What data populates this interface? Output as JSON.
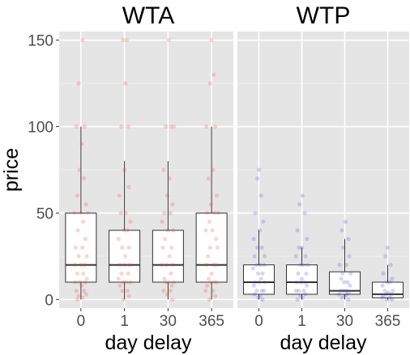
{
  "chart_data": {
    "type": "boxplot",
    "facets": [
      {
        "title": "WTA",
        "color": "#e8453c",
        "categories": [
          "0",
          "1",
          "30",
          "365"
        ],
        "boxes": [
          {
            "category": "0",
            "min": 0,
            "q1": 10,
            "median": 20,
            "q3": 50,
            "max": 100
          },
          {
            "category": "1",
            "min": 0,
            "q1": 10,
            "median": 20,
            "q3": 40,
            "max": 80
          },
          {
            "category": "30",
            "min": 0,
            "q1": 10,
            "median": 20,
            "q3": 40,
            "max": 80
          },
          {
            "category": "365",
            "min": 0,
            "q1": 10,
            "median": 20,
            "q3": 50,
            "max": 100
          }
        ],
        "points": [
          [
            0,
            150,
            0.02
          ],
          [
            0,
            125,
            -0.03
          ],
          [
            0,
            100,
            -0.06
          ],
          [
            0,
            100,
            0.05
          ],
          [
            0,
            90,
            0.01
          ],
          [
            0,
            75,
            -0.02
          ],
          [
            0,
            70,
            0.04
          ],
          [
            0,
            60,
            -0.05
          ],
          [
            0,
            55,
            0.07
          ],
          [
            0,
            50,
            0.0
          ],
          [
            0,
            50,
            -0.09
          ],
          [
            0,
            50,
            0.09
          ],
          [
            0,
            45,
            0.03
          ],
          [
            0,
            40,
            -0.04
          ],
          [
            0,
            35,
            0.06
          ],
          [
            0,
            30,
            -0.07
          ],
          [
            0,
            30,
            0.02
          ],
          [
            0,
            25,
            0.08
          ],
          [
            0,
            25,
            -0.03
          ],
          [
            0,
            20,
            0.0
          ],
          [
            0,
            20,
            -0.08
          ],
          [
            0,
            20,
            0.05
          ],
          [
            0,
            15,
            0.03
          ],
          [
            0,
            15,
            -0.05
          ],
          [
            0,
            12,
            0.08
          ],
          [
            0,
            10,
            -0.02
          ],
          [
            0,
            10,
            0.06
          ],
          [
            0,
            10,
            -0.08
          ],
          [
            0,
            8,
            0.01
          ],
          [
            0,
            5,
            -0.06
          ],
          [
            0,
            5,
            0.04
          ],
          [
            0,
            3,
            0.07
          ],
          [
            0,
            2,
            -0.03
          ],
          [
            0,
            1,
            0.02
          ],
          [
            0,
            0,
            -0.05
          ],
          [
            1,
            150,
            -0.02
          ],
          [
            1,
            150,
            0.03
          ],
          [
            1,
            125,
            0.01
          ],
          [
            1,
            100,
            -0.04
          ],
          [
            1,
            100,
            0.05
          ],
          [
            1,
            75,
            0.0
          ],
          [
            1,
            65,
            0.06
          ],
          [
            1,
            60,
            -0.07
          ],
          [
            1,
            50,
            0.02
          ],
          [
            1,
            50,
            -0.05
          ],
          [
            1,
            45,
            0.08
          ],
          [
            1,
            40,
            -0.01
          ],
          [
            1,
            40,
            0.04
          ],
          [
            1,
            35,
            -0.08
          ],
          [
            1,
            30,
            0.06
          ],
          [
            1,
            30,
            -0.03
          ],
          [
            1,
            25,
            0.01
          ],
          [
            1,
            20,
            -0.06
          ],
          [
            1,
            20,
            0.07
          ],
          [
            1,
            20,
            0.0
          ],
          [
            1,
            15,
            -0.04
          ],
          [
            1,
            15,
            0.05
          ],
          [
            1,
            12,
            -0.08
          ],
          [
            1,
            10,
            0.02
          ],
          [
            1,
            10,
            -0.02
          ],
          [
            1,
            10,
            0.08
          ],
          [
            1,
            8,
            -0.06
          ],
          [
            1,
            5,
            0.04
          ],
          [
            1,
            5,
            -0.03
          ],
          [
            1,
            2,
            0.06
          ],
          [
            1,
            0,
            -0.01
          ],
          [
            2,
            150,
            0.01
          ],
          [
            2,
            100,
            -0.03
          ],
          [
            2,
            100,
            0.04
          ],
          [
            2,
            100,
            0.08
          ],
          [
            2,
            75,
            -0.06
          ],
          [
            2,
            70,
            0.02
          ],
          [
            2,
            60,
            -0.01
          ],
          [
            2,
            55,
            0.06
          ],
          [
            2,
            50,
            -0.05
          ],
          [
            2,
            50,
            0.03
          ],
          [
            2,
            45,
            -0.08
          ],
          [
            2,
            40,
            0.0
          ],
          [
            2,
            40,
            0.07
          ],
          [
            2,
            35,
            -0.04
          ],
          [
            2,
            30,
            0.05
          ],
          [
            2,
            30,
            -0.07
          ],
          [
            2,
            25,
            0.02
          ],
          [
            2,
            20,
            -0.02
          ],
          [
            2,
            20,
            0.06
          ],
          [
            2,
            20,
            -0.08
          ],
          [
            2,
            15,
            0.04
          ],
          [
            2,
            12,
            -0.05
          ],
          [
            2,
            10,
            0.01
          ],
          [
            2,
            10,
            0.08
          ],
          [
            2,
            10,
            -0.03
          ],
          [
            2,
            8,
            0.05
          ],
          [
            2,
            5,
            -0.06
          ],
          [
            2,
            5,
            0.03
          ],
          [
            2,
            3,
            -0.01
          ],
          [
            2,
            0,
            0.06
          ],
          [
            3,
            150,
            0.0
          ],
          [
            3,
            130,
            0.03
          ],
          [
            3,
            125,
            -0.02
          ],
          [
            3,
            100,
            0.05
          ],
          [
            3,
            100,
            -0.07
          ],
          [
            3,
            75,
            0.02
          ],
          [
            3,
            70,
            -0.04
          ],
          [
            3,
            60,
            0.07
          ],
          [
            3,
            55,
            -0.01
          ],
          [
            3,
            50,
            0.04
          ],
          [
            3,
            50,
            -0.06
          ],
          [
            3,
            50,
            0.09
          ],
          [
            3,
            45,
            -0.03
          ],
          [
            3,
            40,
            0.01
          ],
          [
            3,
            40,
            -0.08
          ],
          [
            3,
            35,
            0.06
          ],
          [
            3,
            30,
            -0.02
          ],
          [
            3,
            30,
            0.08
          ],
          [
            3,
            25,
            -0.05
          ],
          [
            3,
            20,
            0.03
          ],
          [
            3,
            20,
            -0.07
          ],
          [
            3,
            20,
            0.06
          ],
          [
            3,
            15,
            0.0
          ],
          [
            3,
            12,
            -0.04
          ],
          [
            3,
            10,
            0.07
          ],
          [
            3,
            10,
            -0.01
          ],
          [
            3,
            10,
            0.04
          ],
          [
            3,
            8,
            -0.06
          ],
          [
            3,
            5,
            0.02
          ],
          [
            3,
            5,
            -0.08
          ],
          [
            3,
            2,
            0.05
          ],
          [
            3,
            0,
            -0.03
          ]
        ]
      },
      {
        "title": "WTP",
        "color": "#4a4ac6",
        "categories": [
          "0",
          "1",
          "30",
          "365"
        ],
        "boxes": [
          {
            "category": "0",
            "min": 0,
            "q1": 3,
            "median": 10,
            "q3": 20,
            "max": 40
          },
          {
            "category": "1",
            "min": 0,
            "q1": 3,
            "median": 10,
            "q3": 20,
            "max": 30
          },
          {
            "category": "30",
            "min": 0,
            "q1": 3,
            "median": 5,
            "q3": 16,
            "max": 35
          },
          {
            "category": "365",
            "min": 0,
            "q1": 1,
            "median": 3,
            "q3": 10,
            "max": 20
          }
        ],
        "points": [
          [
            0,
            75,
            0.0
          ],
          [
            0,
            70,
            -0.02
          ],
          [
            0,
            60,
            0.03
          ],
          [
            0,
            50,
            -0.05
          ],
          [
            0,
            45,
            0.06
          ],
          [
            0,
            40,
            0.01
          ],
          [
            0,
            35,
            -0.07
          ],
          [
            0,
            30,
            0.04
          ],
          [
            0,
            30,
            -0.02
          ],
          [
            0,
            25,
            0.08
          ],
          [
            0,
            25,
            -0.06
          ],
          [
            0,
            20,
            0.02
          ],
          [
            0,
            20,
            -0.03
          ],
          [
            0,
            20,
            0.07
          ],
          [
            0,
            18,
            -0.08
          ],
          [
            0,
            15,
            0.05
          ],
          [
            0,
            15,
            -0.01
          ],
          [
            0,
            12,
            0.03
          ],
          [
            0,
            10,
            -0.05
          ],
          [
            0,
            10,
            0.08
          ],
          [
            0,
            10,
            0.0
          ],
          [
            0,
            8,
            -0.07
          ],
          [
            0,
            5,
            0.04
          ],
          [
            0,
            5,
            -0.03
          ],
          [
            0,
            5,
            0.07
          ],
          [
            0,
            3,
            -0.06
          ],
          [
            0,
            2,
            0.02
          ],
          [
            0,
            1,
            -0.01
          ],
          [
            0,
            0,
            0.05
          ],
          [
            1,
            60,
            0.01
          ],
          [
            1,
            55,
            -0.03
          ],
          [
            1,
            50,
            0.04
          ],
          [
            1,
            40,
            -0.06
          ],
          [
            1,
            35,
            0.07
          ],
          [
            1,
            30,
            0.0
          ],
          [
            1,
            30,
            -0.04
          ],
          [
            1,
            25,
            0.05
          ],
          [
            1,
            25,
            -0.08
          ],
          [
            1,
            20,
            0.02
          ],
          [
            1,
            20,
            -0.02
          ],
          [
            1,
            20,
            0.08
          ],
          [
            1,
            15,
            -0.05
          ],
          [
            1,
            15,
            0.06
          ],
          [
            1,
            12,
            0.0
          ],
          [
            1,
            10,
            -0.07
          ],
          [
            1,
            10,
            0.04
          ],
          [
            1,
            10,
            -0.01
          ],
          [
            1,
            8,
            0.07
          ],
          [
            1,
            5,
            -0.04
          ],
          [
            1,
            5,
            0.03
          ],
          [
            1,
            5,
            -0.08
          ],
          [
            1,
            3,
            0.05
          ],
          [
            1,
            2,
            -0.02
          ],
          [
            1,
            1,
            0.01
          ],
          [
            1,
            0,
            -0.06
          ],
          [
            2,
            45,
            0.01
          ],
          [
            2,
            40,
            -0.04
          ],
          [
            2,
            35,
            0.05
          ],
          [
            2,
            30,
            -0.02
          ],
          [
            2,
            25,
            0.06
          ],
          [
            2,
            20,
            -0.07
          ],
          [
            2,
            20,
            0.02
          ],
          [
            2,
            15,
            -0.03
          ],
          [
            2,
            15,
            0.08
          ],
          [
            2,
            12,
            -0.05
          ],
          [
            2,
            10,
            0.04
          ],
          [
            2,
            10,
            -0.01
          ],
          [
            2,
            8,
            0.07
          ],
          [
            2,
            5,
            -0.06
          ],
          [
            2,
            5,
            0.02
          ],
          [
            2,
            5,
            -0.02
          ],
          [
            2,
            4,
            0.06
          ],
          [
            2,
            3,
            -0.08
          ],
          [
            2,
            3,
            0.03
          ],
          [
            2,
            2,
            0.0
          ],
          [
            2,
            1,
            -0.04
          ],
          [
            2,
            0,
            0.05
          ],
          [
            3,
            30,
            0.0
          ],
          [
            3,
            25,
            -0.03
          ],
          [
            3,
            20,
            0.04
          ],
          [
            3,
            15,
            -0.06
          ],
          [
            3,
            12,
            0.06
          ],
          [
            3,
            10,
            -0.01
          ],
          [
            3,
            10,
            0.03
          ],
          [
            3,
            8,
            -0.07
          ],
          [
            3,
            5,
            0.07
          ],
          [
            3,
            5,
            -0.04
          ],
          [
            3,
            4,
            0.01
          ],
          [
            3,
            3,
            -0.02
          ],
          [
            3,
            3,
            0.05
          ],
          [
            3,
            2,
            -0.06
          ],
          [
            3,
            1,
            0.03
          ],
          [
            3,
            1,
            -0.08
          ],
          [
            3,
            0,
            0.06
          ],
          [
            3,
            0,
            -0.01
          ]
        ]
      }
    ],
    "xlabel": "day delay",
    "ylabel": "price",
    "ylim": [
      -5,
      155
    ],
    "yticks": [
      0,
      50,
      100,
      150
    ],
    "grid": true
  }
}
